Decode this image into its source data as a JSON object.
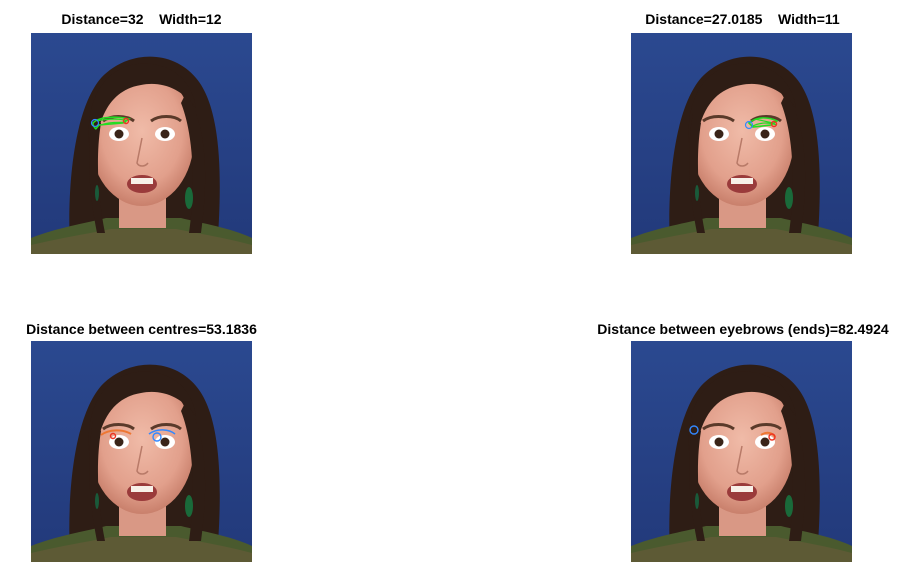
{
  "panels": [
    {
      "title": "Distance=32    Width=12"
    },
    {
      "title": "Distance=27.0185    Width=11"
    },
    {
      "title": "Distance between centres=53.1836"
    },
    {
      "title": "Distance between eyebrows (ends)=82.4924"
    }
  ],
  "photo": {
    "subject": "face-photo",
    "background_color": "#2c4a8c",
    "skin_color": "#e6ab98",
    "hair_color": "#2e1d15"
  },
  "overlay_colors": {
    "contour_green": "#22dd22",
    "marker_red": "#ee3322",
    "marker_blue": "#3388ff"
  }
}
